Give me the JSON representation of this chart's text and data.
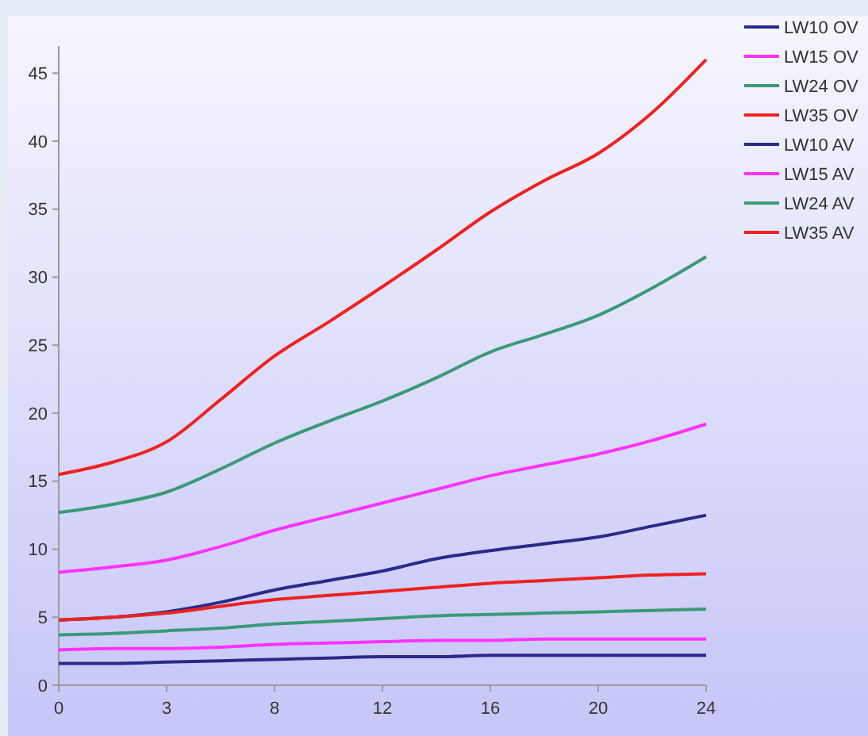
{
  "chart_data": {
    "type": "line",
    "categories": [
      "0",
      null,
      "3",
      null,
      "8",
      null,
      "12",
      null,
      "16",
      null,
      "20",
      null,
      "24"
    ],
    "ylim": [
      0,
      47
    ],
    "yticks": [
      0,
      5,
      10,
      15,
      20,
      25,
      30,
      35,
      40,
      45
    ],
    "grid": false,
    "legend": "top right",
    "line_style": "solid",
    "series": [
      {
        "name": "LW10 OV",
        "color": "#2a2a8a",
        "values": [
          4.8,
          5.0,
          5.4,
          6.1,
          7.0,
          7.7,
          8.4,
          9.3,
          9.9,
          10.4,
          10.9,
          11.7,
          12.5
        ]
      },
      {
        "name": "LW15 OV",
        "color": "#ff33ff",
        "values": [
          8.3,
          8.7,
          9.2,
          10.2,
          11.4,
          12.4,
          13.4,
          14.4,
          15.4,
          16.2,
          17.0,
          18.0,
          19.2
        ]
      },
      {
        "name": "LW24 OV",
        "color": "#3a9a78",
        "values": [
          12.7,
          13.3,
          14.2,
          15.9,
          17.8,
          19.4,
          20.9,
          22.6,
          24.5,
          25.8,
          27.2,
          29.2,
          31.5
        ]
      },
      {
        "name": "LW35 OV",
        "color": "#ee2222",
        "values": [
          15.5,
          16.4,
          17.9,
          21.0,
          24.2,
          26.7,
          29.3,
          32.0,
          34.8,
          37.1,
          39.1,
          42.1,
          46.0
        ]
      },
      {
        "name": "LW10 AV",
        "color": "#2a2a8a",
        "values": [
          1.6,
          1.6,
          1.7,
          1.8,
          1.9,
          2.0,
          2.1,
          2.1,
          2.2,
          2.2,
          2.2,
          2.2,
          2.2
        ]
      },
      {
        "name": "LW15 AV",
        "color": "#ff33ff",
        "values": [
          2.6,
          2.7,
          2.7,
          2.8,
          3.0,
          3.1,
          3.2,
          3.3,
          3.3,
          3.4,
          3.4,
          3.4,
          3.4
        ]
      },
      {
        "name": "LW24 AV",
        "color": "#3a9a78",
        "values": [
          3.7,
          3.8,
          4.0,
          4.2,
          4.5,
          4.7,
          4.9,
          5.1,
          5.2,
          5.3,
          5.4,
          5.5,
          5.6
        ]
      },
      {
        "name": "LW35 AV",
        "color": "#ee2222",
        "values": [
          4.8,
          5.0,
          5.3,
          5.8,
          6.3,
          6.6,
          6.9,
          7.2,
          7.5,
          7.7,
          7.9,
          8.1,
          8.2
        ]
      }
    ]
  }
}
